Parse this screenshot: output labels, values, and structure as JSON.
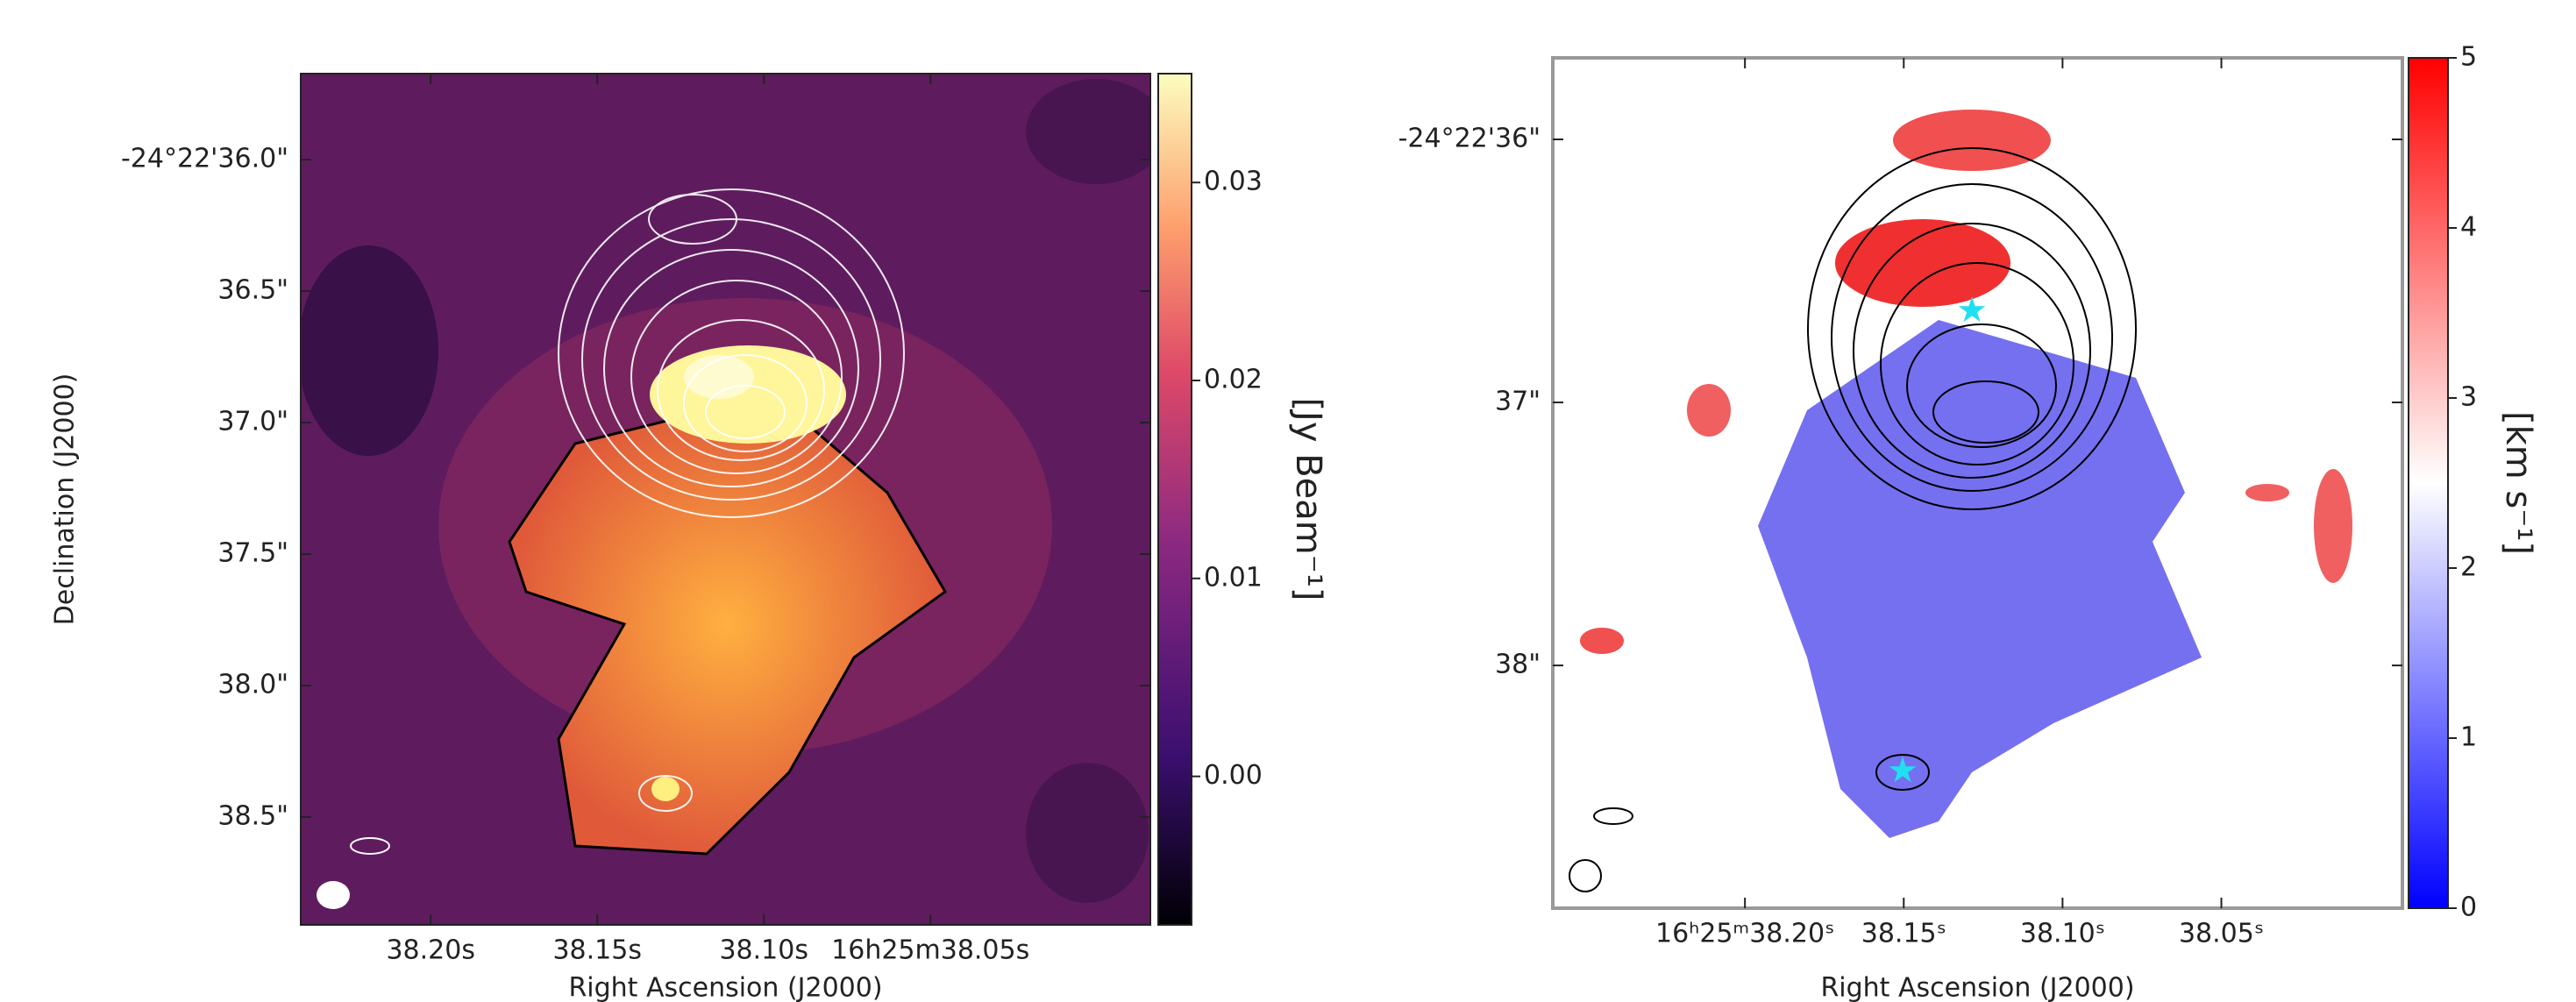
{
  "panels": [
    {
      "xlabel": "Right Ascension (J2000)",
      "ylabel": "Declination (J2000)",
      "xlim": [
        38.239,
        37.984
      ],
      "ylim": [
        35.673,
        38.91
      ],
      "xticks": [
        {
          "value": 38.2,
          "label": "38.20s"
        },
        {
          "value": 38.15,
          "label": "38.15s"
        },
        {
          "value": 38.1,
          "label": "38.10s"
        },
        {
          "value": 38.05,
          "label": "16h25m38.05s"
        }
      ],
      "yticks": [
        {
          "value": 36.0,
          "label": "-24°22'36.0\""
        },
        {
          "value": 36.5,
          "label": "36.5\""
        },
        {
          "value": 37.0,
          "label": "37.0\""
        },
        {
          "value": 37.5,
          "label": "37.5\""
        },
        {
          "value": 38.0,
          "label": "38.0\""
        },
        {
          "value": 38.5,
          "label": "38.5\""
        }
      ],
      "colorbar": {
        "label": "[Jy Beam⁻¹]",
        "lim": [
          -0.0075,
          0.0355
        ],
        "ticks": [
          {
            "value": 0,
            "label": "0.00"
          },
          0.01,
          0.02,
          0.03
        ]
      }
    },
    {
      "xlabel": "Right Ascension (J2000)",
      "xlim": [
        38.2605,
        37.993
      ],
      "ylim": [
        35.69,
        38.923
      ],
      "xticks": [
        {
          "value": 38.2,
          "label": "16ʰ25ᵐ38.20ˢ"
        },
        {
          "value": 38.15,
          "label": "38.15ˢ"
        },
        {
          "value": 38.1,
          "label": "38.10ˢ"
        },
        {
          "value": 38.05,
          "label": "38.05ˢ"
        }
      ],
      "yticks": [
        {
          "value": 36,
          "label": "-24°22'36\""
        },
        {
          "value": 37,
          "label": "37\""
        },
        {
          "value": 38,
          "label": "38\""
        }
      ],
      "colorbar": {
        "label": "[km s⁻¹]",
        "lim": [
          0,
          5
        ],
        "ticks": [
          0,
          1,
          2,
          3,
          4,
          5
        ]
      }
    }
  ]
}
